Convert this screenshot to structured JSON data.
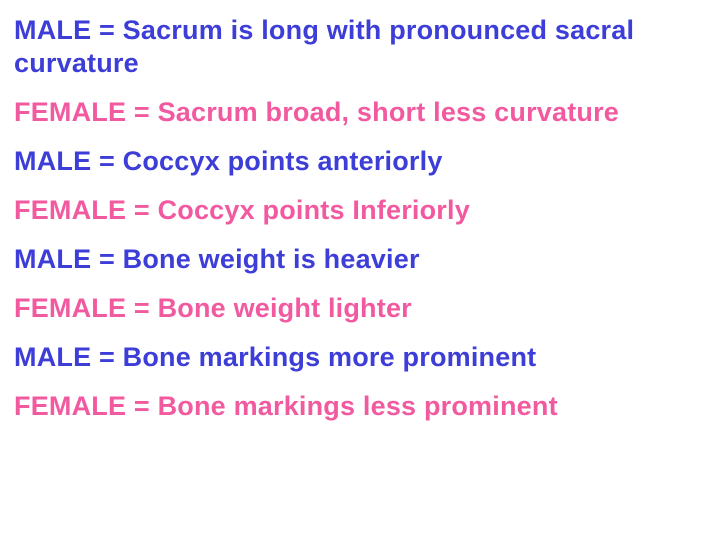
{
  "colors": {
    "male": "#3d3dd8",
    "female": "#f25aa0",
    "background": "#ffffff"
  },
  "typography": {
    "font_family": "Comic Sans MS",
    "font_size_pt": 20,
    "font_weight": "bold",
    "line_height": 1.22
  },
  "rows": [
    {
      "type": "male",
      "text": "MALE = Sacrum is long with pronounced sacral curvature"
    },
    {
      "type": "female",
      "text": "FEMALE = Sacrum broad, short less curvature"
    },
    {
      "type": "male",
      "text": "MALE = Coccyx points anteriorly"
    },
    {
      "type": "female",
      "text": "FEMALE = Coccyx points Inferiorly"
    },
    {
      "type": "male",
      "text": "MALE = Bone weight is heavier"
    },
    {
      "type": "female",
      "text": "FEMALE = Bone weight lighter"
    },
    {
      "type": "male",
      "text": "MALE = Bone markings more prominent"
    },
    {
      "type": "female",
      "text": "FEMALE = Bone markings less prominent"
    }
  ]
}
